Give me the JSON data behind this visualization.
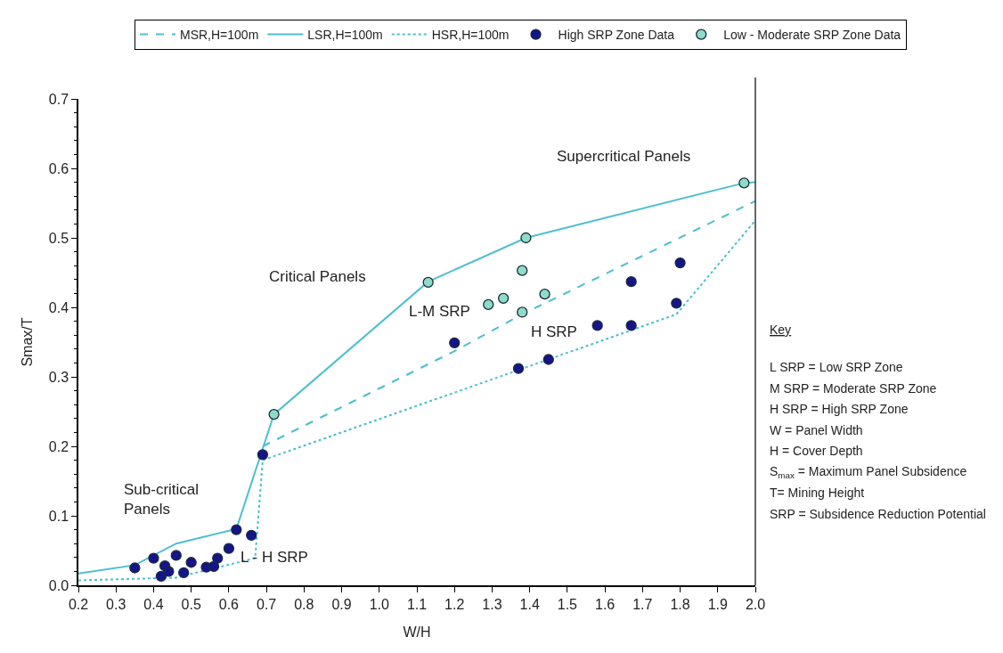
{
  "chart_data": {
    "type": "line",
    "xlabel": "W/H",
    "ylabel": "Smax/T",
    "legend": "top",
    "xlim": [
      0.2,
      2.0
    ],
    "xticks": [
      0.2,
      0.3,
      0.4,
      0.5,
      0.6,
      0.7,
      0.8,
      0.9,
      {
        "value": 1.0,
        "label": "1.0"
      },
      1.1,
      1.2,
      1.3,
      1.4,
      1.5,
      1.6,
      1.7,
      1.8,
      1.9,
      {
        "value": 2.0,
        "label": "2.0"
      }
    ],
    "ylim": [
      0,
      0.7
    ],
    "yticks": [
      {
        "value": 0,
        "label": "0.0"
      },
      {
        "value": 0.02,
        "label": null
      },
      {
        "value": 0.04,
        "label": null
      },
      {
        "value": 0.06,
        "label": null
      },
      {
        "value": 0.08,
        "label": null
      },
      0.1,
      {
        "value": 0.12,
        "label": null
      },
      {
        "value": 0.14,
        "label": null
      },
      {
        "value": 0.16,
        "label": null
      },
      {
        "value": 0.18,
        "label": null
      },
      0.2,
      {
        "value": 0.22,
        "label": null
      },
      {
        "value": 0.24,
        "label": null
      },
      {
        "value": 0.26,
        "label": null
      },
      {
        "value": 0.28,
        "label": null
      },
      0.3,
      {
        "value": 0.32,
        "label": null
      },
      {
        "value": 0.34,
        "label": null
      },
      {
        "value": 0.36,
        "label": null
      },
      {
        "value": 0.38,
        "label": null
      },
      0.4,
      {
        "value": 0.42,
        "label": null
      },
      {
        "value": 0.44,
        "label": null
      },
      {
        "value": 0.46,
        "label": null
      },
      {
        "value": 0.48,
        "label": null
      },
      0.5,
      {
        "value": 0.52,
        "label": null
      },
      {
        "value": 0.54,
        "label": null
      },
      {
        "value": 0.56,
        "label": null
      },
      {
        "value": 0.58,
        "label": null
      },
      0.6,
      {
        "value": 0.62,
        "label": null
      },
      {
        "value": 0.64,
        "label": null
      },
      {
        "value": 0.66,
        "label": null
      },
      {
        "value": 0.68,
        "label": null
      },
      0.7
    ],
    "series": [
      {
        "name": "MSR,H=100m",
        "line_style": "dashed",
        "color": "#4dbfd0",
        "x": [
          0.69,
          1.2,
          1.38,
          2.0
        ],
        "values": [
          0.2,
          0.337,
          0.39,
          0.553
        ]
      },
      {
        "name": "LSR,H=100m",
        "line_style": "solid",
        "color": "#4dbfd0",
        "x": [
          0.2,
          0.35,
          0.46,
          0.62,
          0.72,
          1.13,
          1.39,
          1.97,
          2.0
        ],
        "values": [
          0.017,
          0.029,
          0.06,
          0.081,
          0.246,
          0.437,
          0.5,
          0.579,
          0.58
        ]
      },
      {
        "name": "HSR,H=100m",
        "line_style": "dotted",
        "color": "#4dbfd0",
        "x": [
          0.2,
          0.46,
          0.67,
          0.69,
          1.79,
          2.0
        ],
        "values": [
          0.007,
          0.011,
          0.039,
          0.18,
          0.39,
          0.525
        ]
      },
      {
        "name": "High SRP Zone Data",
        "type": "scatter",
        "marker": "circle",
        "color": "#14148c",
        "x": [
          0.35,
          0.4,
          0.42,
          0.43,
          0.44,
          0.46,
          0.48,
          0.5,
          0.54,
          0.56,
          0.57,
          0.6,
          0.62,
          0.66,
          0.69,
          1.2,
          1.37,
          1.45,
          1.58,
          1.67,
          1.67,
          1.79,
          1.8
        ],
        "values": [
          0.025,
          0.039,
          0.013,
          0.028,
          0.02,
          0.043,
          0.018,
          0.033,
          0.026,
          0.027,
          0.039,
          0.053,
          0.08,
          0.072,
          0.188,
          0.349,
          0.312,
          0.325,
          0.374,
          0.374,
          0.437,
          0.406,
          0.464
        ]
      },
      {
        "name": "Low - Moderate SRP Zone Data",
        "type": "scatter",
        "marker": "circle",
        "color": "#8ddccb",
        "x": [
          0.72,
          1.13,
          1.29,
          1.33,
          1.38,
          1.38,
          1.44,
          1.39,
          1.97
        ],
        "values": [
          0.246,
          0.436,
          0.404,
          0.413,
          0.453,
          0.393,
          0.419,
          0.5,
          0.579
        ]
      }
    ],
    "annotations": [
      "Supercritical Panels",
      "Critical Panels",
      "L-M SRP",
      "H SRP",
      "Sub-critical\nPanels",
      "L - H SRP",
      "Key",
      "L SRP = Low SRP Zone",
      "M SRP = Moderate SRP Zone",
      "H SRP = High SRP Zone",
      "W = Panel Width",
      "H = Cover Depth",
      "S$_{max}$ = Maximum Panel Subsidence",
      "T= Mining Height",
      "SRP = Subsidence Reduction Potential"
    ]
  }
}
